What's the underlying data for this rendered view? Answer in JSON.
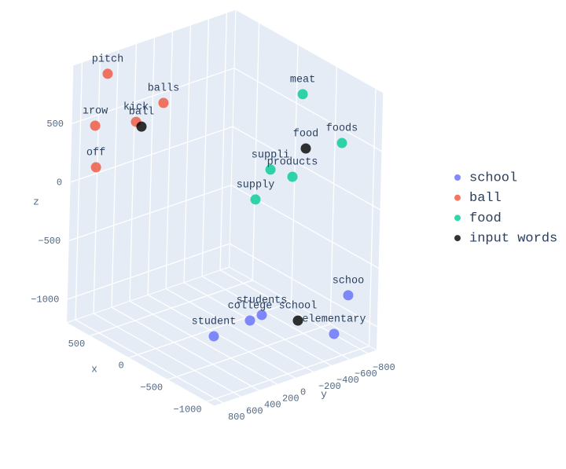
{
  "chart_data": {
    "type": "scatter3d",
    "series": [
      {
        "name": "school",
        "color": "#636efa",
        "labels": [
          "schoo",
          "students",
          "college",
          "student",
          "elementary"
        ],
        "x": [
          -900,
          -700,
          -700,
          -700,
          -900
        ],
        "y": [
          -740,
          43,
          173,
          572,
          -593
        ],
        "z": [
          -762,
          -798,
          -811,
          -840,
          -1053
        ]
      },
      {
        "name": "ball",
        "color": "#ef553b",
        "labels": [
          "pitch",
          "balls",
          "kick",
          "ırow",
          "off"
        ],
        "x": [
          600,
          500,
          500,
          700,
          700
        ],
        "y": [
          687,
          144,
          445,
          724,
          703
        ],
        "z": [
          946,
          591,
          509,
          475,
          114
        ]
      },
      {
        "name": "food",
        "color": "#00cc96",
        "labels": [
          "meat",
          "foods",
          "suppli",
          "products",
          "supply"
        ],
        "x": [
          -300,
          -800,
          -300,
          -300,
          -300
        ],
        "y": [
          -703,
          -715,
          -365,
          -612,
          -206
        ],
        "z": [
          741,
          508,
          186,
          60,
          -27
        ]
      },
      {
        "name": "input words",
        "color": "#000000",
        "labels": [
          "ball",
          "food",
          "school"
        ],
        "x": [
          500,
          -300,
          -700
        ],
        "y": [
          383,
          -753,
          -362
        ],
        "z": [
          452,
          264,
          -953
        ]
      }
    ],
    "xlabel": "x",
    "ylabel": "y",
    "zlabel": "z",
    "xlim": [
      -1100,
      800
    ],
    "ylim": [
      -900,
      900
    ],
    "zlim": [
      -1200,
      1000
    ],
    "xticks": [
      {
        "value": -1000,
        "label": "−1000"
      },
      {
        "value": -500,
        "label": "−500"
      },
      0,
      500
    ],
    "yticks": [
      {
        "value": -800,
        "label": "−800"
      },
      {
        "value": -600,
        "label": "−600"
      },
      {
        "value": -400,
        "label": "−400"
      },
      {
        "value": -200,
        "label": "−200"
      },
      0,
      200,
      400,
      600,
      800
    ],
    "zticks": [
      {
        "value": -1000,
        "label": "−1000"
      },
      {
        "value": -500,
        "label": "−500"
      },
      0,
      500
    ],
    "grid": true,
    "legend": "right"
  }
}
